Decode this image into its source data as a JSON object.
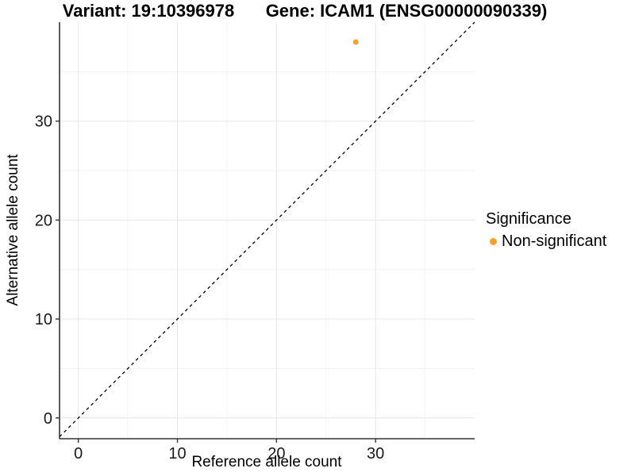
{
  "chart_data": {
    "type": "scatter",
    "title_left": "Variant: 19:10396978",
    "title_right": "Gene: ICAM1 (ENSG00000090339)",
    "xlabel": "Reference allele count",
    "ylabel": "Alternative allele count",
    "xlim": [
      -1.9,
      40
    ],
    "ylim": [
      -2.1,
      40
    ],
    "x_major_ticks": [
      0,
      10,
      20,
      30
    ],
    "y_major_ticks": [
      0,
      10,
      20,
      30
    ],
    "x_minor_ticks": [
      5,
      15,
      25,
      35
    ],
    "y_minor_ticks": [
      5,
      15,
      25,
      35
    ],
    "grid": true,
    "identity_line": {
      "slope": 1,
      "intercept": 0,
      "style": "dashed",
      "color": "#000000"
    },
    "series": [
      {
        "name": "Non-significant",
        "color": "#F9A02B",
        "points": [
          {
            "x": 28,
            "y": 38
          }
        ]
      }
    ],
    "legend": {
      "title": "Significance",
      "position": "right",
      "items": [
        {
          "label": "Non-significant",
          "color": "#F9A02B"
        }
      ]
    },
    "colors": {
      "point": "#F9A02B",
      "grid_major": "#E6E6E6",
      "grid_minor": "#F2F2F2",
      "axis_line": "#333333",
      "tick_label": "#1a1a1a",
      "background": "#ffffff"
    }
  }
}
